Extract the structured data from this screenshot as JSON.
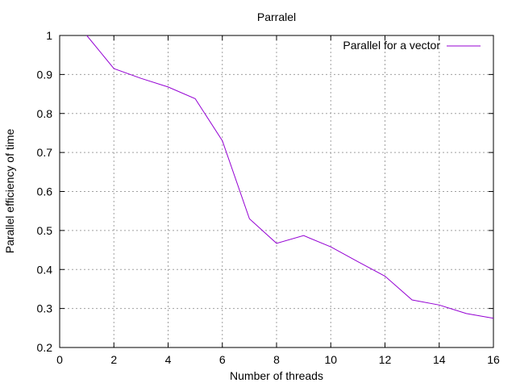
{
  "chart_data": {
    "type": "line",
    "title": "Parralel",
    "xlabel": "Number of threads",
    "ylabel": "Parallel efficiency of time",
    "xlim": [
      0,
      16
    ],
    "ylim": [
      0.2,
      1
    ],
    "x_ticks": [
      "0",
      "2",
      "4",
      "6",
      "8",
      "10",
      "12",
      "14",
      "16"
    ],
    "y_ticks": [
      "0.2",
      "0.3",
      "0.4",
      "0.5",
      "0.6",
      "0.7",
      "0.8",
      "0.9",
      "1"
    ],
    "grid": true,
    "legend_position": "top-right",
    "series": [
      {
        "name": "Parallel for a vector",
        "color": "#9400d3",
        "x": [
          1,
          2,
          3,
          4,
          5,
          6,
          7,
          8,
          9,
          10,
          11,
          12,
          13,
          14,
          15,
          16
        ],
        "y": [
          1.0,
          0.915,
          0.89,
          0.868,
          0.838,
          0.73,
          0.53,
          0.467,
          0.487,
          0.458,
          0.42,
          0.383,
          0.322,
          0.309,
          0.287,
          0.275
        ]
      }
    ]
  }
}
